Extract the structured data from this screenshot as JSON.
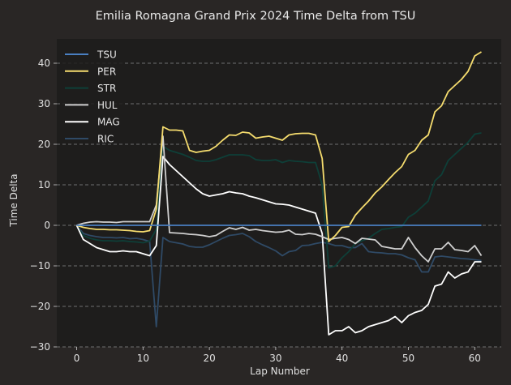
{
  "chart_data": {
    "type": "line",
    "title": "Emilia Romagna Grand Prix 2024 Time Delta from TSU",
    "xlabel": "Lap Number",
    "ylabel": "Time Delta",
    "xlim": [
      -3,
      64
    ],
    "ylim": [
      -30,
      46
    ],
    "xticks": [
      0,
      10,
      20,
      30,
      40,
      50,
      60
    ],
    "yticks": [
      -30,
      -20,
      -10,
      0,
      10,
      20,
      30,
      40
    ],
    "xtick_labels": [
      "0",
      "10",
      "20",
      "30",
      "40",
      "50",
      "60"
    ],
    "ytick_labels": [
      "−30",
      "−20",
      "−10",
      "0",
      "10",
      "20",
      "30",
      "40"
    ],
    "grid": "horizontal dashed",
    "legend_position": "top-left",
    "background": "#292625",
    "plot_background": "#1e1d1c",
    "x": [
      0,
      1,
      2,
      3,
      4,
      5,
      6,
      7,
      8,
      9,
      10,
      11,
      12,
      13,
      14,
      15,
      16,
      17,
      18,
      19,
      20,
      21,
      22,
      23,
      24,
      25,
      26,
      27,
      28,
      29,
      30,
      31,
      32,
      33,
      34,
      35,
      36,
      37,
      38,
      39,
      40,
      41,
      42,
      43,
      44,
      45,
      46,
      47,
      48,
      49,
      50,
      51,
      52,
      53,
      54,
      55,
      56,
      57,
      58,
      59,
      60,
      61
    ],
    "series": [
      {
        "name": "TSU",
        "color": "#4a7fc1",
        "values": [
          0,
          0,
          0,
          0,
          0,
          0,
          0,
          0,
          0,
          0,
          0,
          0,
          0,
          0,
          0,
          0,
          0,
          0,
          0,
          0,
          0,
          0,
          0,
          0,
          0,
          0,
          0,
          0,
          0,
          0,
          0,
          0,
          0,
          0,
          0,
          0,
          0,
          0,
          0,
          0,
          0,
          0,
          0,
          0,
          0,
          0,
          0,
          0,
          0,
          0,
          0,
          0,
          0,
          0,
          0,
          0,
          0,
          0,
          0,
          0,
          0,
          0
        ]
      },
      {
        "name": "PER",
        "color": "#f5dc6e",
        "values": [
          0,
          -0.5,
          -0.8,
          -1.0,
          -1.0,
          -1.1,
          -1.1,
          -1.2,
          -1.3,
          -1.5,
          -1.6,
          -1.3,
          4.0,
          24.3,
          23.5,
          23.5,
          23.3,
          18.5,
          18.0,
          18.3,
          18.5,
          19.5,
          21.0,
          22.3,
          22.2,
          23.0,
          22.8,
          21.5,
          21.8,
          22.0,
          21.5,
          21.0,
          22.3,
          22.6,
          22.7,
          22.7,
          22.3,
          16.5,
          -4.0,
          -2.5,
          -0.5,
          -0.3,
          2.5,
          4.3,
          6.0,
          8.0,
          9.5,
          11.3,
          13.0,
          14.5,
          17.5,
          18.5,
          21.0,
          22.3,
          28.0,
          29.5,
          33.0,
          34.5,
          36.0,
          38.0,
          41.8,
          42.8
        ]
      },
      {
        "name": "STR",
        "color": "#0e3f38",
        "values": [
          0,
          -2.5,
          -3.2,
          -3.6,
          -3.8,
          -3.8,
          -3.9,
          -3.8,
          -4.0,
          -4.1,
          -4.3,
          -3.9,
          -1.0,
          19.5,
          18.5,
          18.0,
          17.5,
          16.8,
          16.0,
          15.8,
          15.8,
          16.2,
          16.8,
          17.4,
          17.4,
          17.4,
          17.2,
          16.2,
          16.0,
          16.0,
          16.2,
          15.5,
          16.0,
          15.8,
          15.7,
          15.5,
          15.5,
          10.0,
          -10.5,
          -10.0,
          -8.0,
          -6.5,
          -4.5,
          -3.8,
          -3.2,
          -2.0,
          -1.0,
          -0.8,
          -0.5,
          -0.3,
          2.0,
          3.0,
          4.5,
          6.0,
          11.0,
          12.5,
          16.0,
          17.5,
          19.0,
          20.5,
          22.5,
          22.8
        ]
      },
      {
        "name": "HUL",
        "color": "#cfcfcf",
        "values": [
          0,
          0.5,
          0.8,
          0.9,
          0.8,
          0.8,
          0.7,
          0.9,
          0.9,
          0.9,
          0.9,
          0.9,
          5.0,
          22.0,
          -1.8,
          -1.9,
          -2.0,
          -2.2,
          -2.3,
          -2.5,
          -2.8,
          -2.5,
          -1.5,
          -0.6,
          -1.0,
          -0.5,
          -1.2,
          -1.0,
          -1.3,
          -1.5,
          -1.7,
          -1.6,
          -1.2,
          -2.2,
          -2.3,
          -2.0,
          -2.2,
          -2.8,
          -3.5,
          -3.2,
          -3.0,
          -3.5,
          -4.5,
          -3.2,
          -3.4,
          -3.6,
          -5.2,
          -5.5,
          -5.8,
          -5.8,
          -3.0,
          -5.5,
          -7.5,
          -9.0,
          -5.8,
          -5.8,
          -4.2,
          -6.0,
          -6.2,
          -6.5,
          -5.0,
          -7.5
        ]
      },
      {
        "name": "MAG",
        "color": "#ffffff",
        "values": [
          0,
          -3.5,
          -4.5,
          -5.5,
          -6.0,
          -6.5,
          -6.5,
          -6.3,
          -6.5,
          -6.5,
          -7.0,
          -7.5,
          -5.0,
          17.0,
          15.0,
          13.5,
          12.0,
          10.5,
          9.0,
          7.8,
          7.2,
          7.5,
          7.8,
          8.3,
          8.0,
          7.8,
          7.2,
          6.8,
          6.3,
          5.8,
          5.3,
          5.2,
          5.0,
          4.5,
          4.0,
          3.5,
          3.0,
          -2.0,
          -27.0,
          -26.0,
          -26.0,
          -25.0,
          -26.5,
          -26.0,
          -25.0,
          -24.5,
          -24.0,
          -23.5,
          -22.5,
          -24.0,
          -22.3,
          -21.5,
          -21.0,
          -19.5,
          -15.0,
          -14.5,
          -11.5,
          -13.0,
          -12.0,
          -11.5,
          -9.0,
          -9.0
        ]
      },
      {
        "name": "RIC",
        "color": "#2f4a66",
        "values": [
          0,
          -2.0,
          -2.5,
          -2.8,
          -3.0,
          -3.0,
          -3.1,
          -3.0,
          -3.3,
          -3.2,
          -3.5,
          -4.0,
          -25.0,
          -3.0,
          -4.0,
          -4.3,
          -4.6,
          -5.2,
          -5.4,
          -5.4,
          -4.8,
          -4.0,
          -3.2,
          -2.5,
          -2.3,
          -2.0,
          -2.8,
          -4.0,
          -4.8,
          -5.5,
          -6.3,
          -7.5,
          -6.5,
          -6.2,
          -5.0,
          -4.9,
          -4.5,
          -4.2,
          -4.5,
          -5.0,
          -5.0,
          -5.5,
          -5.5,
          -4.5,
          -6.5,
          -6.7,
          -6.8,
          -7.0,
          -7.0,
          -7.3,
          -8.0,
          -8.5,
          -11.5,
          -11.5,
          -7.8,
          -7.6,
          -7.8,
          -8.0,
          -8.2,
          -8.3,
          -8.5,
          -8.7
        ]
      }
    ]
  }
}
